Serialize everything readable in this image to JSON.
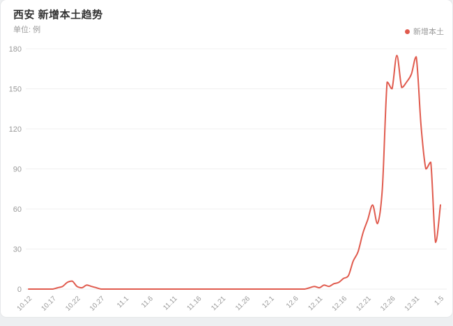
{
  "colors": {
    "page_bg": "#edeff1",
    "card_bg": "#ffffff",
    "title": "#333333",
    "muted": "#999999",
    "grid": "#f0f0f0",
    "axis_zero": "#ececec",
    "series": "#e05a4d"
  },
  "header": {
    "title": "西安 新增本土趋势",
    "subtitle": "单位: 例"
  },
  "legend": {
    "label": "新增本土"
  },
  "chart_data": {
    "type": "line",
    "title": "西安 新增本土趋势",
    "unit": "例",
    "series_name": "新增本土",
    "color": "#e05a4d",
    "smooth": true,
    "grid": "horizontal-only",
    "legend_position": "top-right",
    "ylim": [
      0,
      180
    ],
    "y_ticks": [
      0,
      30,
      60,
      90,
      120,
      150,
      180
    ],
    "x_tick_labels": [
      "10.12",
      "10.17",
      "10.22",
      "10.27",
      "11.1",
      "11.6",
      "11.11",
      "11.16",
      "11.21",
      "11.26",
      "12.1",
      "12.6",
      "12.11",
      "12.16",
      "12.21",
      "12.26",
      "12.31",
      "1.5"
    ],
    "x": [
      "10.12",
      "10.13",
      "10.14",
      "10.15",
      "10.16",
      "10.17",
      "10.18",
      "10.19",
      "10.20",
      "10.21",
      "10.22",
      "10.23",
      "10.24",
      "10.25",
      "10.26",
      "10.27",
      "10.28",
      "10.29",
      "10.30",
      "10.31",
      "11.1",
      "11.2",
      "11.3",
      "11.4",
      "11.5",
      "11.6",
      "11.7",
      "11.8",
      "11.9",
      "11.10",
      "11.11",
      "11.12",
      "11.13",
      "11.14",
      "11.15",
      "11.16",
      "11.17",
      "11.18",
      "11.19",
      "11.20",
      "11.21",
      "11.22",
      "11.23",
      "11.24",
      "11.25",
      "11.26",
      "11.27",
      "11.28",
      "11.29",
      "11.30",
      "12.1",
      "12.2",
      "12.3",
      "12.4",
      "12.5",
      "12.6",
      "12.7",
      "12.8",
      "12.9",
      "12.10",
      "12.11",
      "12.12",
      "12.13",
      "12.14",
      "12.15",
      "12.16",
      "12.17",
      "12.18",
      "12.19",
      "12.20",
      "12.21",
      "12.22",
      "12.23",
      "12.24",
      "12.25",
      "12.26",
      "12.27",
      "12.28",
      "12.29",
      "12.30",
      "12.31",
      "1.1",
      "1.2",
      "1.3",
      "1.4",
      "1.5"
    ],
    "values": [
      0,
      0,
      0,
      0,
      0,
      0,
      1,
      2,
      5,
      6,
      2,
      1,
      3,
      2,
      1,
      0,
      0,
      0,
      0,
      0,
      0,
      0,
      0,
      0,
      0,
      0,
      0,
      0,
      0,
      0,
      0,
      0,
      0,
      0,
      0,
      0,
      0,
      0,
      0,
      0,
      0,
      0,
      0,
      0,
      0,
      0,
      0,
      0,
      0,
      0,
      0,
      0,
      0,
      0,
      0,
      0,
      0,
      0,
      1,
      2,
      1,
      3,
      2,
      4,
      5,
      8,
      10,
      21,
      28,
      42,
      52,
      63,
      49,
      75,
      155,
      150,
      175,
      151,
      155,
      161,
      174,
      122,
      90,
      95,
      35,
      63
    ]
  }
}
